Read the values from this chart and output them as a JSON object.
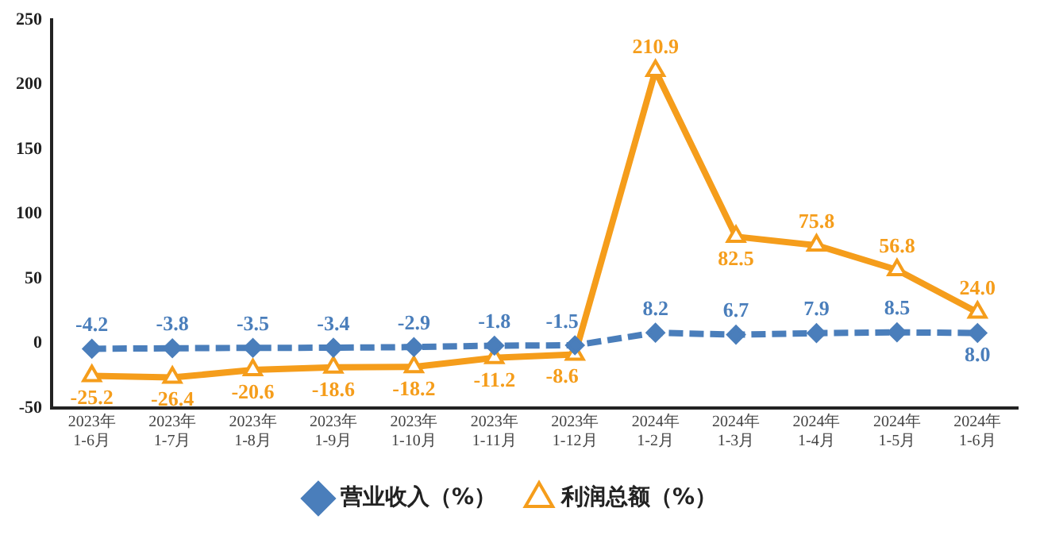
{
  "chart_data": {
    "type": "line",
    "categories": [
      "2023年\n1-6月",
      "2023年\n1-7月",
      "2023年\n1-8月",
      "2023年\n1-9月",
      "2023年\n1-10月",
      "2023年\n1-11月",
      "2023年\n1-12月",
      "2024年\n1-2月",
      "2024年\n1-3月",
      "2024年\n1-4月",
      "2024年\n1-5月",
      "2024年\n1-6月"
    ],
    "series": [
      {
        "name": "营业收入（%）",
        "color": "#4a7ebb",
        "marker": "diamond",
        "line_style": "dashed",
        "values": [
          -4.2,
          -3.8,
          -3.5,
          -3.4,
          -2.9,
          -1.8,
          -1.5,
          8.2,
          6.7,
          7.9,
          8.5,
          8.0
        ],
        "value_labels": [
          "-4.2",
          "-3.8",
          "-3.5",
          "-3.4",
          "-2.9",
          "-1.8",
          "-1.5",
          "8.2",
          "6.7",
          "7.9",
          "8.5",
          "8.0"
        ]
      },
      {
        "name": "利润总额（%）",
        "color": "#f59d1b",
        "marker": "triangle",
        "line_style": "solid",
        "values": [
          -25.2,
          -26.4,
          -20.6,
          -18.6,
          -18.2,
          -11.2,
          -8.6,
          210.9,
          82.5,
          75.8,
          56.8,
          24.0
        ],
        "value_labels": [
          "-25.2",
          "-26.4",
          "-20.6",
          "-18.6",
          "-18.2",
          "-11.2",
          "-8.6",
          "210.9",
          "82.5",
          "75.8",
          "56.8",
          "24.0"
        ]
      }
    ],
    "ylim": [
      -50,
      250
    ],
    "yticks": [
      -50,
      0,
      50,
      100,
      150,
      200,
      250
    ],
    "grid": false,
    "legend": "bottom"
  }
}
